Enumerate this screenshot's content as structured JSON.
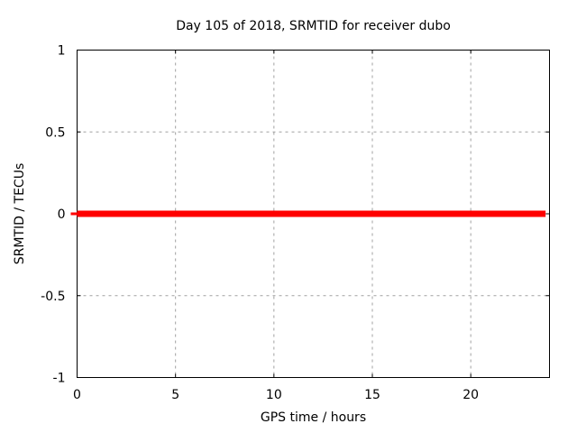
{
  "chart_data": {
    "type": "line",
    "title": "Day 105 of 2018, SRMTID for receiver dubo",
    "xlabel": "GPS time / hours",
    "ylabel": "SRMTID / TECUs",
    "xlim": [
      0,
      24
    ],
    "ylim": [
      -1,
      1
    ],
    "xticks": [
      0,
      5,
      10,
      15,
      20
    ],
    "xtick_labels": [
      "0",
      "5",
      "10",
      "15",
      "20"
    ],
    "yticks": [
      -1,
      -0.5,
      0,
      0.5,
      1
    ],
    "ytick_labels": [
      "-1",
      "-0.5",
      "0",
      "0.5",
      "1"
    ],
    "grid": true,
    "grid_style": "dashed",
    "legend": "none",
    "series": [
      {
        "name": "SRMTID",
        "color": "#ff0000",
        "linewidth": 7,
        "x": [
          0,
          23.8
        ],
        "y": [
          0,
          0
        ]
      }
    ],
    "colors": {
      "background": "#ffffff",
      "axis": "#000000",
      "grid": "#a0a0a0",
      "text": "#000000"
    }
  }
}
